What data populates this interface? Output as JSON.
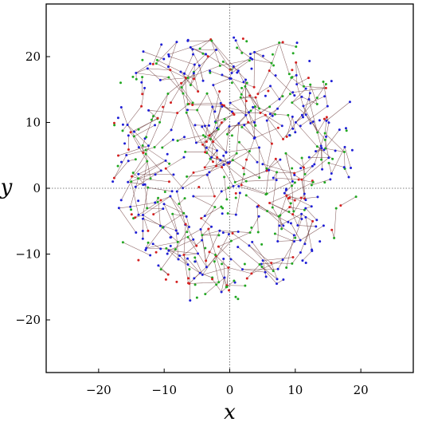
{
  "chart_data": {
    "type": "scatter",
    "title": "",
    "xlabel": "x",
    "ylabel": "y",
    "xlim": [
      -28,
      28
    ],
    "ylim": [
      -28,
      28
    ],
    "xticks": [
      -20,
      -10,
      0,
      10,
      20
    ],
    "yticks": [
      -20,
      -10,
      0,
      10,
      20
    ],
    "xtick_labels": [
      "−20",
      "−10",
      "0",
      "10",
      "20"
    ],
    "ytick_labels": [
      "−20",
      "−10",
      "0",
      "10",
      "20"
    ],
    "grid": false,
    "zero_lines": true,
    "legend": "none",
    "colors": {
      "frame": "#000000",
      "edges": "#6b3a3a",
      "node_blue": "#1f1fd6",
      "node_green": "#22a822",
      "node_red": "#d42020",
      "zero_line": "#555555"
    },
    "network": {
      "description_free": true,
      "node_count": 620,
      "extent": {
        "x": [
          -18,
          22
        ],
        "y": [
          -21,
          23
        ]
      },
      "center": [
        0,
        4
      ]
    }
  }
}
